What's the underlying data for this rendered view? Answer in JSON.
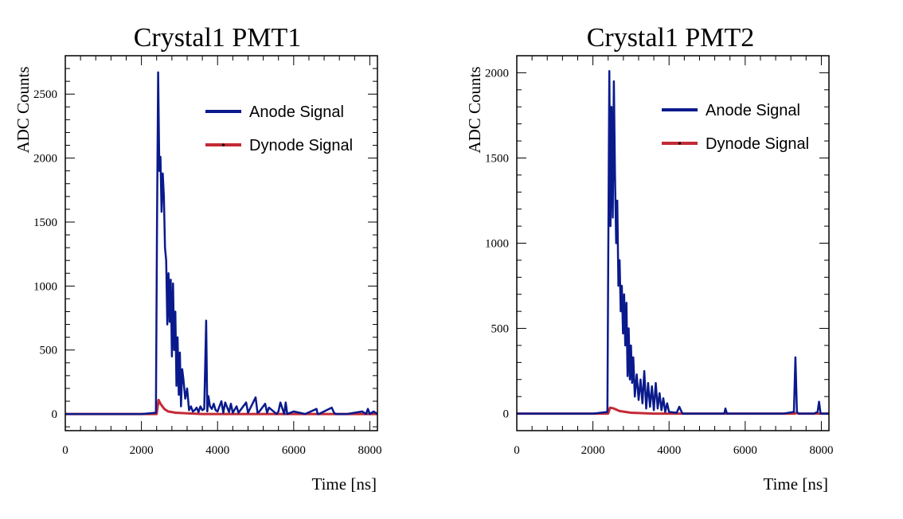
{
  "colors": {
    "anode": "#0a1a8c",
    "dynode": "#c42a36",
    "axis": "#000000"
  },
  "chart_data": [
    {
      "type": "line",
      "title": "Crystal1 PMT1",
      "xlabel": "Time [ns]",
      "ylabel": "ADC Counts",
      "xlim": [
        0,
        8200
      ],
      "ylim": [
        -130,
        2800
      ],
      "xticks": [
        0,
        2000,
        4000,
        6000,
        8000
      ],
      "xtick_labels": [
        "0",
        "2000",
        "4000",
        "6000",
        "8000"
      ],
      "yticks": [
        0,
        500,
        1000,
        1500,
        2000,
        2500
      ],
      "ytick_labels": [
        "0",
        "500",
        "1000",
        "1500",
        "2000",
        "2500"
      ],
      "legend": [
        "Anode Signal",
        "Dynode Signal"
      ],
      "legend_position": "top-right",
      "series": [
        {
          "name": "Anode Signal",
          "x": [
            0,
            500,
            1000,
            1500,
            2000,
            2380,
            2410,
            2440,
            2470,
            2500,
            2530,
            2560,
            2590,
            2620,
            2650,
            2680,
            2710,
            2740,
            2770,
            2800,
            2830,
            2860,
            2890,
            2920,
            2950,
            2980,
            3010,
            3040,
            3070,
            3100,
            3150,
            3200,
            3250,
            3300,
            3350,
            3400,
            3450,
            3500,
            3550,
            3600,
            3650,
            3700,
            3730,
            3760,
            3800,
            3850,
            3900,
            3950,
            4000,
            4100,
            4150,
            4200,
            4300,
            4350,
            4400,
            4500,
            4550,
            4600,
            4750,
            4800,
            4850,
            5000,
            5050,
            5100,
            5250,
            5300,
            5350,
            5550,
            5600,
            5650,
            5750,
            5790,
            5830,
            6000,
            6300,
            6600,
            6630,
            6660,
            7000,
            7060,
            7100,
            7400,
            7800,
            7900,
            7950,
            8000,
            8100,
            8200
          ],
          "values": [
            0,
            0,
            0,
            0,
            0,
            10,
            1500,
            2670,
            1900,
            2010,
            1580,
            1880,
            1700,
            1300,
            1200,
            700,
            1100,
            720,
            1050,
            450,
            1020,
            500,
            800,
            220,
            600,
            150,
            480,
            60,
            350,
            280,
            120,
            200,
            30,
            60,
            20,
            30,
            50,
            15,
            60,
            30,
            40,
            730,
            20,
            140,
            60,
            40,
            80,
            30,
            20,
            100,
            10,
            90,
            15,
            80,
            10,
            60,
            10,
            30,
            90,
            10,
            40,
            130,
            10,
            20,
            80,
            10,
            50,
            0,
            20,
            90,
            0,
            90,
            0,
            20,
            0,
            40,
            0,
            0,
            50,
            10,
            0,
            0,
            20,
            0,
            40,
            0,
            20,
            0
          ]
        },
        {
          "name": "Dynode Signal",
          "x": [
            0,
            1000,
            2000,
            2400,
            2450,
            2500,
            2600,
            2700,
            2900,
            3200,
            3600,
            4200,
            5000,
            6000,
            7000,
            8200
          ],
          "values": [
            0,
            0,
            0,
            0,
            110,
            80,
            40,
            20,
            10,
            5,
            0,
            0,
            0,
            0,
            0,
            0
          ]
        }
      ]
    },
    {
      "type": "line",
      "title": "Crystal1 PMT2",
      "xlabel": "Time [ns]",
      "ylabel": "ADC Counts",
      "xlim": [
        0,
        8200
      ],
      "ylim": [
        -100,
        2100
      ],
      "xticks": [
        0,
        2000,
        4000,
        6000,
        8000
      ],
      "xtick_labels": [
        "0",
        "2000",
        "4000",
        "6000",
        "8000"
      ],
      "yticks": [
        0,
        500,
        1000,
        1500,
        2000
      ],
      "ytick_labels": [
        "0",
        "500",
        "1000",
        "1500",
        "2000"
      ],
      "legend": [
        "Anode Signal",
        "Dynode Signal"
      ],
      "legend_position": "top-right",
      "series": [
        {
          "name": "Anode Signal",
          "x": [
            0,
            500,
            1000,
            1500,
            2000,
            2380,
            2400,
            2430,
            2460,
            2490,
            2520,
            2550,
            2580,
            2610,
            2640,
            2670,
            2700,
            2730,
            2760,
            2790,
            2820,
            2850,
            2880,
            2910,
            2940,
            2970,
            3000,
            3030,
            3060,
            3100,
            3150,
            3200,
            3250,
            3300,
            3350,
            3400,
            3450,
            3500,
            3550,
            3600,
            3650,
            3700,
            3750,
            3800,
            3850,
            3900,
            3950,
            4000,
            4200,
            4270,
            4350,
            5000,
            5450,
            5480,
            5520,
            6000,
            7000,
            7280,
            7320,
            7360,
            7400,
            7800,
            7900,
            7940,
            7980,
            8200
          ],
          "values": [
            0,
            0,
            0,
            0,
            0,
            10,
            800,
            2010,
            1100,
            1800,
            1150,
            1950,
            1400,
            1000,
            1250,
            750,
            900,
            600,
            750,
            470,
            700,
            400,
            650,
            220,
            500,
            200,
            400,
            180,
            330,
            100,
            230,
            80,
            200,
            60,
            250,
            30,
            180,
            40,
            160,
            20,
            180,
            30,
            120,
            20,
            90,
            10,
            60,
            10,
            5,
            40,
            0,
            0,
            0,
            30,
            0,
            0,
            0,
            10,
            330,
            10,
            0,
            0,
            10,
            70,
            0,
            0
          ]
        },
        {
          "name": "Dynode Signal",
          "x": [
            0,
            1000,
            2000,
            2400,
            2450,
            2550,
            2700,
            3000,
            3600,
            4500,
            6000,
            7300,
            7350,
            7400,
            8200
          ],
          "values": [
            0,
            0,
            0,
            0,
            35,
            30,
            15,
            5,
            0,
            0,
            0,
            0,
            5,
            0,
            0
          ]
        }
      ]
    }
  ]
}
